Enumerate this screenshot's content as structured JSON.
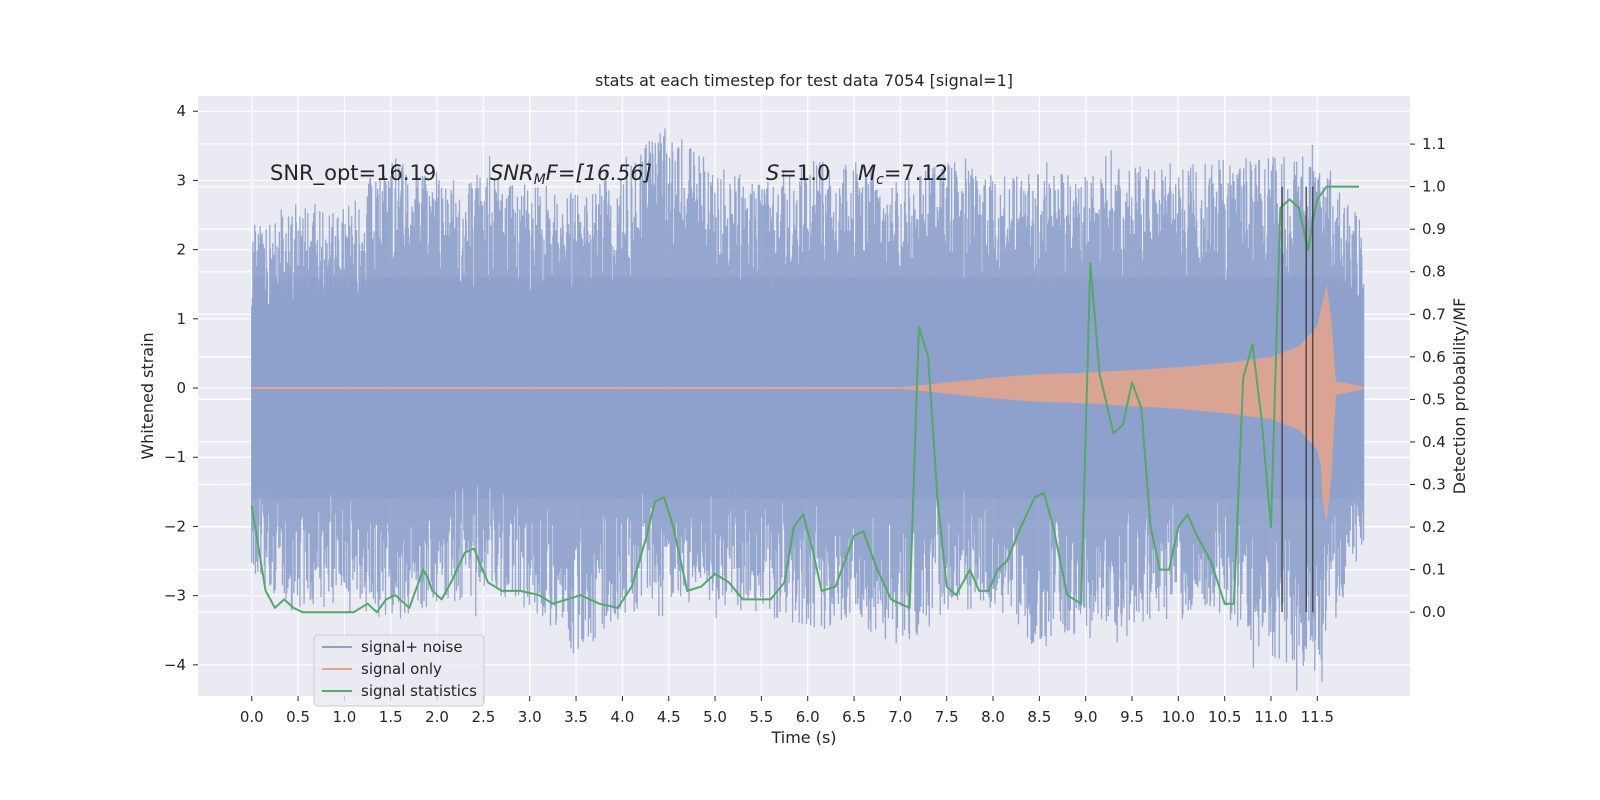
{
  "chart_data": {
    "type": "line",
    "title": "stats at each timestep for test data 7054 [signal=1]",
    "xlabel": "Time (s)",
    "ylabel": "Whitened strain",
    "y2label": "Detection probability/MF",
    "xlim": [
      -0.58,
      12.5
    ],
    "ylim": [
      -4.45,
      4.22
    ],
    "y2lim": [
      -0.197,
      1.213
    ],
    "xticks": [
      "0.0",
      "0.5",
      "1.0",
      "1.5",
      "2.0",
      "2.5",
      "3.0",
      "3.5",
      "4.0",
      "4.5",
      "5.0",
      "5.5",
      "6.0",
      "6.5",
      "7.0",
      "7.5",
      "8.0",
      "8.5",
      "9.0",
      "9.5",
      "10.0",
      "10.5",
      "11.0",
      "11.5"
    ],
    "yticks": [
      "4",
      "3",
      "2",
      "1",
      "0",
      "−1",
      "−2",
      "−3",
      "−4"
    ],
    "y2ticks": [
      "1.1",
      "1.0",
      "0.9",
      "0.8",
      "0.7",
      "0.6",
      "0.5",
      "0.4",
      "0.3",
      "0.2",
      "0.1",
      "0.0"
    ],
    "annotations": {
      "snr_opt": "SNR_opt=16.19",
      "snr_mf_base": "SNR",
      "snr_mf_sub": "M",
      "snr_mf_rest": "F=[16.56]",
      "s_base": "S",
      "s_rest": "=1.0",
      "mc_base": "M",
      "mc_sub": "c",
      "mc_rest": "=7.12"
    },
    "legend": {
      "placement": "lower-left",
      "entries": [
        "signal+ noise",
        "signal only",
        "signal statistics"
      ]
    },
    "colors": {
      "noise": "#8da0cb",
      "signal": "#e8a58a",
      "stats": "#55a868",
      "vlines": "#333333",
      "background": "#eaeaf2"
    },
    "noise_envelope": {
      "x": [
        0.0,
        0.5,
        1.0,
        1.5,
        2.0,
        2.5,
        3.0,
        3.5,
        4.0,
        4.5,
        5.0,
        5.5,
        6.0,
        6.5,
        7.0,
        7.5,
        8.0,
        8.5,
        9.0,
        9.5,
        10.0,
        10.5,
        11.0,
        11.5,
        12.0
      ],
      "upper": [
        2.4,
        2.8,
        2.6,
        3.4,
        3.0,
        3.1,
        3.0,
        2.8,
        3.3,
        3.8,
        3.2,
        3.0,
        3.3,
        3.4,
        3.0,
        3.3,
        3.1,
        3.1,
        3.1,
        3.2,
        3.3,
        3.3,
        3.4,
        3.2,
        2.5
      ],
      "lower": [
        -2.7,
        -3.3,
        -3.1,
        -3.4,
        -3.1,
        -3.0,
        -3.2,
        -3.9,
        -3.3,
        -3.1,
        -3.1,
        -3.3,
        -3.6,
        -3.4,
        -3.8,
        -3.3,
        -3.1,
        -3.9,
        -3.5,
        -3.5,
        -3.3,
        -3.3,
        -4.0,
        -4.1,
        -2.4
      ]
    },
    "signal_envelope": {
      "x": [
        0.0,
        7.0,
        7.5,
        8.0,
        8.5,
        9.0,
        9.5,
        10.0,
        10.5,
        11.0,
        11.3,
        11.5,
        11.6,
        11.65,
        11.7,
        12.0
      ],
      "amplitude": [
        0.0,
        0.01,
        0.08,
        0.15,
        0.2,
        0.22,
        0.26,
        0.3,
        0.36,
        0.45,
        0.6,
        0.9,
        1.5,
        1.0,
        0.1,
        0.02
      ]
    },
    "stats_series": {
      "name": "signal statistics",
      "x": [
        0.0,
        0.15,
        0.2,
        0.25,
        0.35,
        0.45,
        0.55,
        0.7,
        0.9,
        1.1,
        1.25,
        1.35,
        1.45,
        1.55,
        1.7,
        1.85,
        1.9,
        1.95,
        2.05,
        2.15,
        2.3,
        2.4,
        2.45,
        2.55,
        2.7,
        2.9,
        3.1,
        3.25,
        3.4,
        3.55,
        3.75,
        3.95,
        4.1,
        4.25,
        4.35,
        4.45,
        4.55,
        4.7,
        4.85,
        5.0,
        5.15,
        5.3,
        5.45,
        5.6,
        5.75,
        5.85,
        5.95,
        6.05,
        6.15,
        6.3,
        6.5,
        6.6,
        6.75,
        6.9,
        7.0,
        7.1,
        7.2,
        7.3,
        7.4,
        7.5,
        7.6,
        7.75,
        7.85,
        7.95,
        8.05,
        8.15,
        8.3,
        8.45,
        8.55,
        8.65,
        8.8,
        8.95,
        9.05,
        9.15,
        9.3,
        9.4,
        9.5,
        9.6,
        9.7,
        9.8,
        9.9,
        10.0,
        10.1,
        10.2,
        10.35,
        10.5,
        10.6,
        10.7,
        10.8,
        10.9,
        11.0,
        11.1,
        11.2,
        11.3,
        11.4,
        11.45,
        11.5,
        11.6,
        11.7,
        11.95
      ],
      "values": [
        0.25,
        0.05,
        0.03,
        0.01,
        0.03,
        0.01,
        0.0,
        0.0,
        0.0,
        0.0,
        0.02,
        0.0,
        0.03,
        0.04,
        0.01,
        0.1,
        0.08,
        0.05,
        0.03,
        0.07,
        0.14,
        0.15,
        0.12,
        0.07,
        0.05,
        0.05,
        0.04,
        0.02,
        0.03,
        0.04,
        0.02,
        0.01,
        0.06,
        0.17,
        0.26,
        0.27,
        0.2,
        0.05,
        0.06,
        0.09,
        0.07,
        0.03,
        0.03,
        0.03,
        0.07,
        0.2,
        0.23,
        0.15,
        0.05,
        0.06,
        0.18,
        0.19,
        0.1,
        0.03,
        0.02,
        0.01,
        0.67,
        0.6,
        0.27,
        0.06,
        0.04,
        0.1,
        0.05,
        0.05,
        0.1,
        0.12,
        0.2,
        0.27,
        0.28,
        0.2,
        0.04,
        0.02,
        0.82,
        0.56,
        0.42,
        0.44,
        0.54,
        0.48,
        0.2,
        0.1,
        0.1,
        0.2,
        0.23,
        0.18,
        0.12,
        0.02,
        0.02,
        0.55,
        0.63,
        0.45,
        0.2,
        0.95,
        0.97,
        0.95,
        0.85,
        0.92,
        0.97,
        1.0,
        1.0,
        1.0
      ]
    },
    "vertical_lines": [
      11.12,
      11.38,
      11.45
    ]
  }
}
